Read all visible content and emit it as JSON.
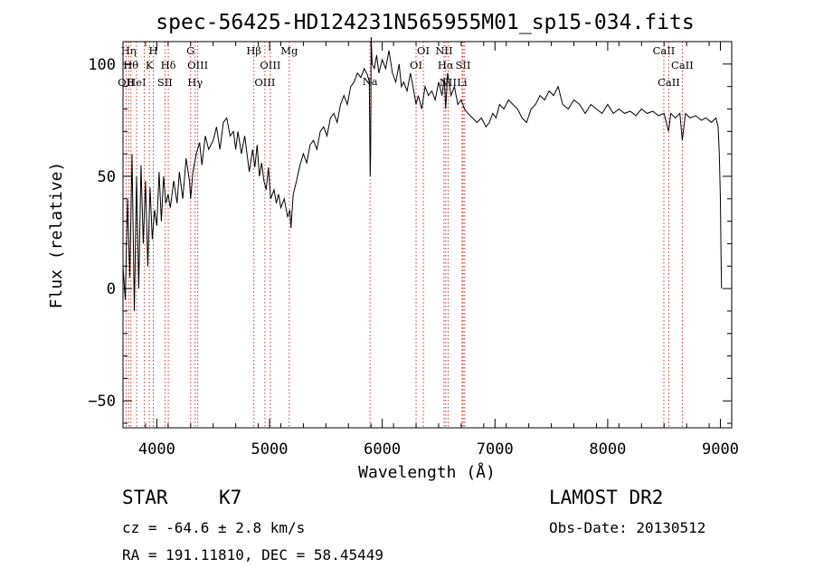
{
  "chart_data": {
    "type": "line",
    "title": "spec-56425-HD124231N565955M01_sp15-034.fits",
    "xlabel": "Wavelength (Å)",
    "ylabel": "Flux (relative)",
    "xlim": [
      3700,
      9100
    ],
    "ylim": [
      -62,
      110
    ],
    "x_ticks": [
      4000,
      5000,
      6000,
      7000,
      8000,
      9000
    ],
    "y_ticks": [
      -50,
      0,
      50,
      100
    ],
    "grid": false,
    "line_color": "#000000",
    "marker_color": "#c0392b",
    "series": [
      {
        "points": [
          [
            3700,
            10
          ],
          [
            3720,
            -5
          ],
          [
            3740,
            40
          ],
          [
            3760,
            5
          ],
          [
            3780,
            60
          ],
          [
            3800,
            -10
          ],
          [
            3820,
            50
          ],
          [
            3840,
            0
          ],
          [
            3860,
            55
          ],
          [
            3880,
            20
          ],
          [
            3900,
            48
          ],
          [
            3920,
            10
          ],
          [
            3940,
            45
          ],
          [
            3960,
            22
          ],
          [
            3980,
            35
          ],
          [
            4000,
            28
          ],
          [
            4020,
            52
          ],
          [
            4040,
            30
          ],
          [
            4060,
            50
          ],
          [
            4080,
            38
          ],
          [
            4100,
            42
          ],
          [
            4120,
            36
          ],
          [
            4150,
            48
          ],
          [
            4180,
            38
          ],
          [
            4200,
            52
          ],
          [
            4230,
            40
          ],
          [
            4260,
            58
          ],
          [
            4290,
            48
          ],
          [
            4300,
            40
          ],
          [
            4320,
            52
          ],
          [
            4350,
            60
          ],
          [
            4380,
            65
          ],
          [
            4400,
            55
          ],
          [
            4430,
            68
          ],
          [
            4460,
            62
          ],
          [
            4500,
            66
          ],
          [
            4530,
            72
          ],
          [
            4560,
            62
          ],
          [
            4590,
            74
          ],
          [
            4620,
            76
          ],
          [
            4650,
            68
          ],
          [
            4680,
            70
          ],
          [
            4700,
            62
          ],
          [
            4720,
            70
          ],
          [
            4750,
            60
          ],
          [
            4780,
            68
          ],
          [
            4800,
            60
          ],
          [
            4820,
            52
          ],
          [
            4850,
            62
          ],
          [
            4870,
            54
          ],
          [
            4890,
            64
          ],
          [
            4910,
            50
          ],
          [
            4930,
            56
          ],
          [
            4950,
            48
          ],
          [
            4970,
            44
          ],
          [
            4990,
            54
          ],
          [
            5010,
            40
          ],
          [
            5040,
            44
          ],
          [
            5060,
            38
          ],
          [
            5080,
            42
          ],
          [
            5100,
            36
          ],
          [
            5130,
            40
          ],
          [
            5160,
            32
          ],
          [
            5180,
            35
          ],
          [
            5190,
            27
          ],
          [
            5210,
            42
          ],
          [
            5240,
            48
          ],
          [
            5270,
            55
          ],
          [
            5300,
            60
          ],
          [
            5330,
            56
          ],
          [
            5360,
            64
          ],
          [
            5390,
            66
          ],
          [
            5420,
            62
          ],
          [
            5450,
            70
          ],
          [
            5480,
            72
          ],
          [
            5510,
            68
          ],
          [
            5540,
            76
          ],
          [
            5570,
            78
          ],
          [
            5600,
            74
          ],
          [
            5630,
            82
          ],
          [
            5660,
            86
          ],
          [
            5690,
            82
          ],
          [
            5720,
            90
          ],
          [
            5750,
            92
          ],
          [
            5780,
            96
          ],
          [
            5810,
            94
          ],
          [
            5840,
            98
          ],
          [
            5870,
            95
          ],
          [
            5885,
            92
          ],
          [
            5893,
            50
          ],
          [
            5897,
            60
          ],
          [
            5902,
            112
          ],
          [
            5910,
            100
          ],
          [
            5930,
            98
          ],
          [
            5950,
            104
          ],
          [
            5970,
            96
          ],
          [
            6000,
            102
          ],
          [
            6030,
            98
          ],
          [
            6060,
            106
          ],
          [
            6090,
            96
          ],
          [
            6120,
            92
          ],
          [
            6150,
            100
          ],
          [
            6170,
            90
          ],
          [
            6190,
            92
          ],
          [
            6220,
            88
          ],
          [
            6250,
            96
          ],
          [
            6280,
            88
          ],
          [
            6300,
            82
          ],
          [
            6320,
            86
          ],
          [
            6350,
            80
          ],
          [
            6380,
            90
          ],
          [
            6410,
            86
          ],
          [
            6440,
            88
          ],
          [
            6470,
            84
          ],
          [
            6500,
            92
          ],
          [
            6530,
            86
          ],
          [
            6550,
            94
          ],
          [
            6563,
            80
          ],
          [
            6580,
            96
          ],
          [
            6610,
            86
          ],
          [
            6640,
            90
          ],
          [
            6670,
            82
          ],
          [
            6700,
            84
          ],
          [
            6730,
            80
          ],
          [
            6760,
            78
          ],
          [
            6800,
            76
          ],
          [
            6840,
            74
          ],
          [
            6880,
            76
          ],
          [
            6920,
            72
          ],
          [
            6950,
            74
          ],
          [
            6980,
            78
          ],
          [
            7010,
            76
          ],
          [
            7040,
            82
          ],
          [
            7080,
            80
          ],
          [
            7120,
            84
          ],
          [
            7160,
            82
          ],
          [
            7200,
            80
          ],
          [
            7240,
            76
          ],
          [
            7280,
            74
          ],
          [
            7320,
            80
          ],
          [
            7360,
            82
          ],
          [
            7400,
            86
          ],
          [
            7440,
            84
          ],
          [
            7480,
            88
          ],
          [
            7520,
            86
          ],
          [
            7560,
            90
          ],
          [
            7600,
            82
          ],
          [
            7650,
            80
          ],
          [
            7700,
            84
          ],
          [
            7750,
            82
          ],
          [
            7800,
            78
          ],
          [
            7850,
            82
          ],
          [
            7900,
            80
          ],
          [
            7950,
            78
          ],
          [
            8000,
            82
          ],
          [
            8050,
            78
          ],
          [
            8100,
            80
          ],
          [
            8150,
            78
          ],
          [
            8200,
            79
          ],
          [
            8250,
            77
          ],
          [
            8300,
            80
          ],
          [
            8350,
            78
          ],
          [
            8400,
            79
          ],
          [
            8450,
            77
          ],
          [
            8500,
            78
          ],
          [
            8540,
            70
          ],
          [
            8560,
            78
          ],
          [
            8600,
            76
          ],
          [
            8640,
            78
          ],
          [
            8662,
            66
          ],
          [
            8690,
            78
          ],
          [
            8730,
            76
          ],
          [
            8780,
            77
          ],
          [
            8830,
            75
          ],
          [
            8870,
            76
          ],
          [
            8920,
            74
          ],
          [
            8960,
            76
          ],
          [
            8980,
            72
          ],
          [
            8990,
            60
          ],
          [
            9000,
            40
          ],
          [
            9005,
            15
          ],
          [
            9010,
            0
          ]
        ]
      }
    ],
    "line_markers": [
      {
        "wave": 3727,
        "label": "OII",
        "row": 3
      },
      {
        "wave": 3750,
        "label": "Hη",
        "row": 1
      },
      {
        "wave": 3770,
        "label": "Hθ",
        "row": 2
      },
      {
        "wave": 3820,
        "label": "HeI",
        "row": 3
      },
      {
        "wave": 3889,
        "label": "",
        "row": 0
      },
      {
        "wave": 3934,
        "label": "K",
        "row": 2
      },
      {
        "wave": 3969,
        "label": "H",
        "row": 1
      },
      {
        "wave": 4072,
        "label": "SII",
        "row": 3
      },
      {
        "wave": 4102,
        "label": "Hδ",
        "row": 2
      },
      {
        "wave": 4300,
        "label": "G",
        "row": 1
      },
      {
        "wave": 4340,
        "label": "Hγ",
        "row": 3
      },
      {
        "wave": 4363,
        "label": "OIII",
        "row": 2
      },
      {
        "wave": 4861,
        "label": "Hβ",
        "row": 1
      },
      {
        "wave": 4959,
        "label": "OIII",
        "row": 3
      },
      {
        "wave": 5007,
        "label": "OIII",
        "row": 2
      },
      {
        "wave": 5175,
        "label": "Mg",
        "row": 1
      },
      {
        "wave": 5892,
        "label": "Na",
        "row": 4
      },
      {
        "wave": 6300,
        "label": "OI",
        "row": 2
      },
      {
        "wave": 6364,
        "label": "OI",
        "row": 1
      },
      {
        "wave": 6548,
        "label": "NII",
        "row": 1
      },
      {
        "wave": 6563,
        "label": "Hα",
        "row": 2
      },
      {
        "wave": 6584,
        "label": "NII",
        "row": 3
      },
      {
        "wave": 6717,
        "label": "SII",
        "row": 2
      },
      {
        "wave": 6731,
        "label": "",
        "row": 0
      },
      {
        "wave": 6708,
        "label": "Li",
        "row": 3
      },
      {
        "wave": 8498,
        "label": "CaII",
        "row": 1
      },
      {
        "wave": 8542,
        "label": "CaII",
        "row": 3
      },
      {
        "wave": 8662,
        "label": "CaII",
        "row": 2
      }
    ]
  },
  "info": {
    "class": "STAR",
    "subclass": "K7",
    "survey": "LAMOST DR2",
    "cz": "cz = -64.6 ± 2.8 km/s",
    "obs_date": "Obs-Date: 20130512",
    "coords": "RA = 191.11810, DEC =  58.45449"
  }
}
